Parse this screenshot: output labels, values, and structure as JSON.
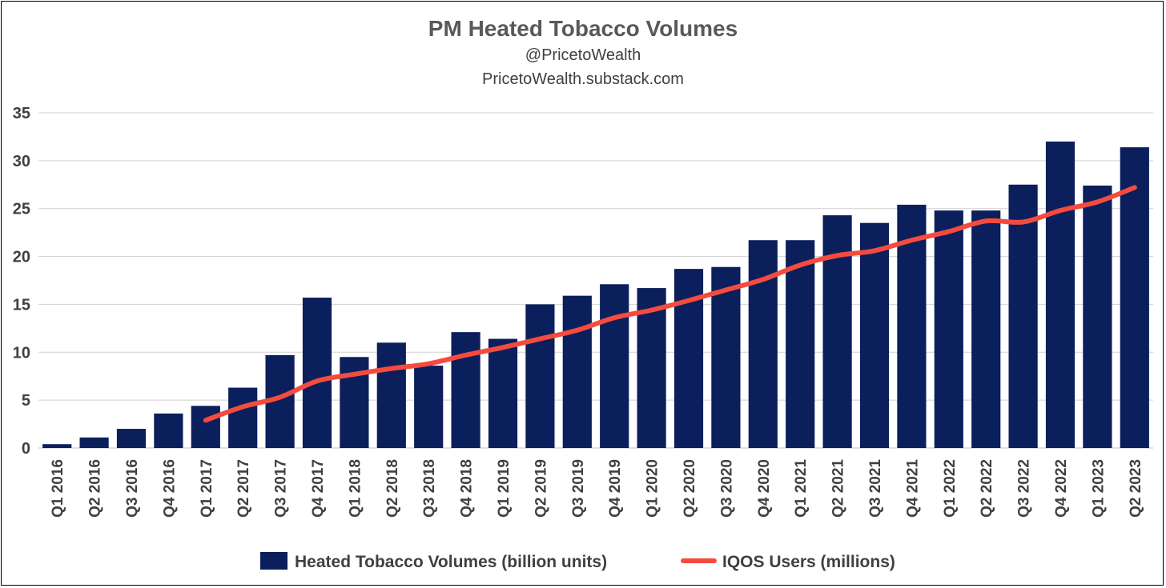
{
  "chart_data": {
    "type": "bar",
    "title": "PM Heated Tobacco Volumes",
    "subtitle_lines": [
      "@PricetoWealth",
      "PricetoWealth.substack.com"
    ],
    "ylim": [
      0,
      35
    ],
    "yticks": [
      0,
      5,
      10,
      15,
      20,
      25,
      30,
      35
    ],
    "grid": true,
    "legend_position": "bottom",
    "categories": [
      "Q1 2016",
      "Q2 2016",
      "Q3 2016",
      "Q4 2016",
      "Q1 2017",
      "Q2 2017",
      "Q3 2017",
      "Q4 2017",
      "Q1 2018",
      "Q2 2018",
      "Q3 2018",
      "Q4 2018",
      "Q1 2019",
      "Q2 2019",
      "Q3 2019",
      "Q4 2019",
      "Q1 2020",
      "Q2 2020",
      "Q3 2020",
      "Q4 2020",
      "Q1 2021",
      "Q2 2021",
      "Q3 2021",
      "Q4 2021",
      "Q1 2022",
      "Q2 2022",
      "Q3 2022",
      "Q4 2022",
      "Q1 2023",
      "Q2 2023"
    ],
    "series": [
      {
        "name": "Heated Tobacco Volumes (billion units)",
        "kind": "bar",
        "color": "#0B1F5C",
        "values": [
          0.4,
          1.1,
          2.0,
          3.6,
          4.4,
          6.3,
          9.7,
          15.7,
          9.5,
          11.0,
          8.6,
          12.1,
          11.4,
          15.0,
          15.9,
          17.1,
          16.7,
          18.7,
          18.9,
          21.7,
          21.7,
          24.3,
          23.5,
          25.4,
          24.8,
          24.8,
          27.5,
          32.0,
          27.4,
          31.4
        ]
      },
      {
        "name": "IQOS Users (millions)",
        "kind": "line",
        "color": "#F44B3F",
        "values": [
          null,
          null,
          null,
          null,
          2.9,
          4.3,
          5.3,
          7.0,
          7.7,
          8.3,
          8.8,
          9.7,
          10.5,
          11.4,
          12.3,
          13.6,
          14.4,
          15.4,
          16.5,
          17.6,
          19.1,
          20.1,
          20.6,
          21.7,
          22.6,
          23.7,
          23.6,
          24.8,
          25.7,
          27.2
        ]
      }
    ]
  }
}
